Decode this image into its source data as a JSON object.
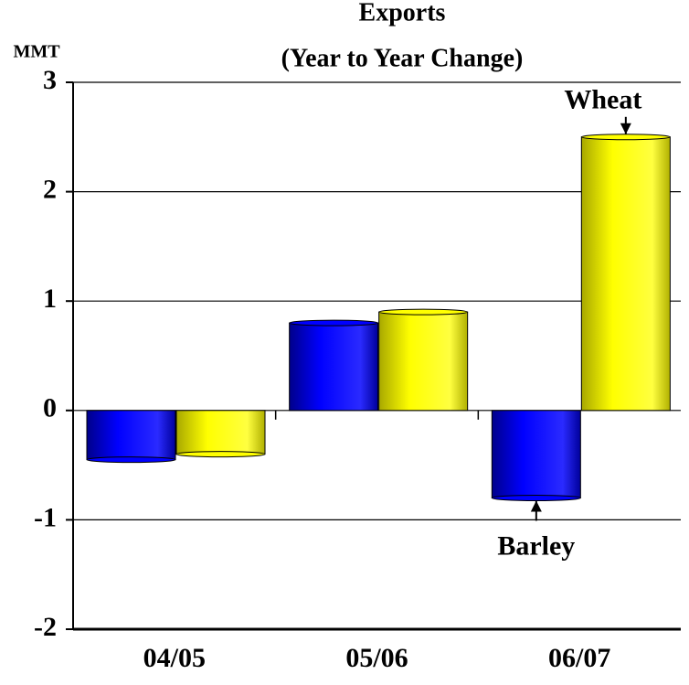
{
  "chart_data": {
    "type": "bar",
    "title": "Exports",
    "subtitle": "(Year to Year Change)",
    "y_label": "MMT",
    "categories": [
      "04/05",
      "05/06",
      "06/07"
    ],
    "series": [
      {
        "name": "Barley",
        "color": "#0000ff",
        "values": [
          -0.45,
          0.8,
          -0.8
        ]
      },
      {
        "name": "Wheat",
        "color": "#ffff00",
        "values": [
          -0.4,
          0.9,
          2.5
        ]
      }
    ],
    "ylim": [
      -2,
      3
    ],
    "yticks": [
      -2,
      -1,
      0,
      1,
      2,
      3
    ],
    "grid": true
  }
}
